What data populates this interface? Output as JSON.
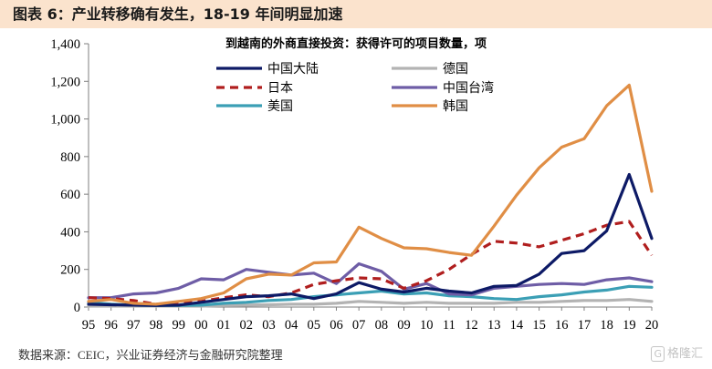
{
  "figure": {
    "title": "图表 6：产业转移确有发生，18-19 年间明显加速",
    "source": "数据来源：CEIC，兴业证券经济与金融研究院整理",
    "watermark": "格隆汇",
    "watermark_logo": "G"
  },
  "chart_data": {
    "type": "line",
    "title": "到越南的外商直接投资：获得许可的项目数量，项",
    "categories": [
      "95",
      "96",
      "97",
      "98",
      "99",
      "00",
      "01",
      "02",
      "03",
      "04",
      "05",
      "06",
      "07",
      "08",
      "09",
      "10",
      "11",
      "12",
      "13",
      "14",
      "15",
      "16",
      "17",
      "18",
      "19",
      "20"
    ],
    "ylim": [
      0,
      1400
    ],
    "yticks": [
      {
        "value": 0,
        "label": "0"
      },
      {
        "value": 200,
        "label": "200"
      },
      {
        "value": 400,
        "label": "400"
      },
      {
        "value": 600,
        "label": "600"
      },
      {
        "value": 800,
        "label": "800"
      },
      {
        "value": 1000,
        "label": "1,000"
      },
      {
        "value": 1200,
        "label": "1,200"
      },
      {
        "value": 1400,
        "label": "1,400"
      }
    ],
    "grid": false,
    "legend_position": "top-center",
    "series": [
      {
        "name": "中国大陆",
        "color": "#0d1a66",
        "dash": "solid",
        "values": [
          15,
          12,
          10,
          8,
          10,
          25,
          40,
          55,
          60,
          70,
          45,
          70,
          130,
          95,
          80,
          100,
          85,
          75,
          110,
          115,
          175,
          285,
          300,
          405,
          705,
          365
        ]
      },
      {
        "name": "德国",
        "color": "#b3b3b3",
        "dash": "solid",
        "values": [
          5,
          5,
          5,
          5,
          5,
          5,
          8,
          10,
          12,
          15,
          15,
          20,
          30,
          25,
          20,
          25,
          20,
          20,
          20,
          25,
          25,
          30,
          35,
          35,
          40,
          30
        ]
      },
      {
        "name": "日本",
        "color": "#b01e1e",
        "dash": "dash",
        "values": [
          50,
          45,
          35,
          15,
          25,
          30,
          50,
          65,
          55,
          75,
          120,
          140,
          155,
          150,
          100,
          140,
          200,
          280,
          350,
          340,
          320,
          355,
          390,
          435,
          455,
          275
        ]
      },
      {
        "name": "中国台湾",
        "color": "#6e5da6",
        "dash": "solid",
        "values": [
          50,
          50,
          70,
          75,
          100,
          150,
          145,
          200,
          185,
          170,
          180,
          125,
          230,
          190,
          95,
          125,
          70,
          65,
          100,
          110,
          120,
          125,
          120,
          145,
          155,
          135
        ]
      },
      {
        "name": "美国",
        "color": "#3b9fb5",
        "dash": "solid",
        "values": [
          25,
          15,
          10,
          8,
          8,
          10,
          20,
          25,
          35,
          40,
          55,
          65,
          75,
          85,
          70,
          75,
          60,
          55,
          45,
          40,
          55,
          65,
          80,
          90,
          110,
          105
        ]
      },
      {
        "name": "韩国",
        "color": "#e08e45",
        "dash": "solid",
        "values": [
          30,
          40,
          20,
          15,
          30,
          45,
          75,
          150,
          175,
          170,
          235,
          240,
          425,
          365,
          315,
          310,
          290,
          275,
          430,
          595,
          740,
          850,
          895,
          1070,
          1180,
          615
        ]
      }
    ]
  }
}
